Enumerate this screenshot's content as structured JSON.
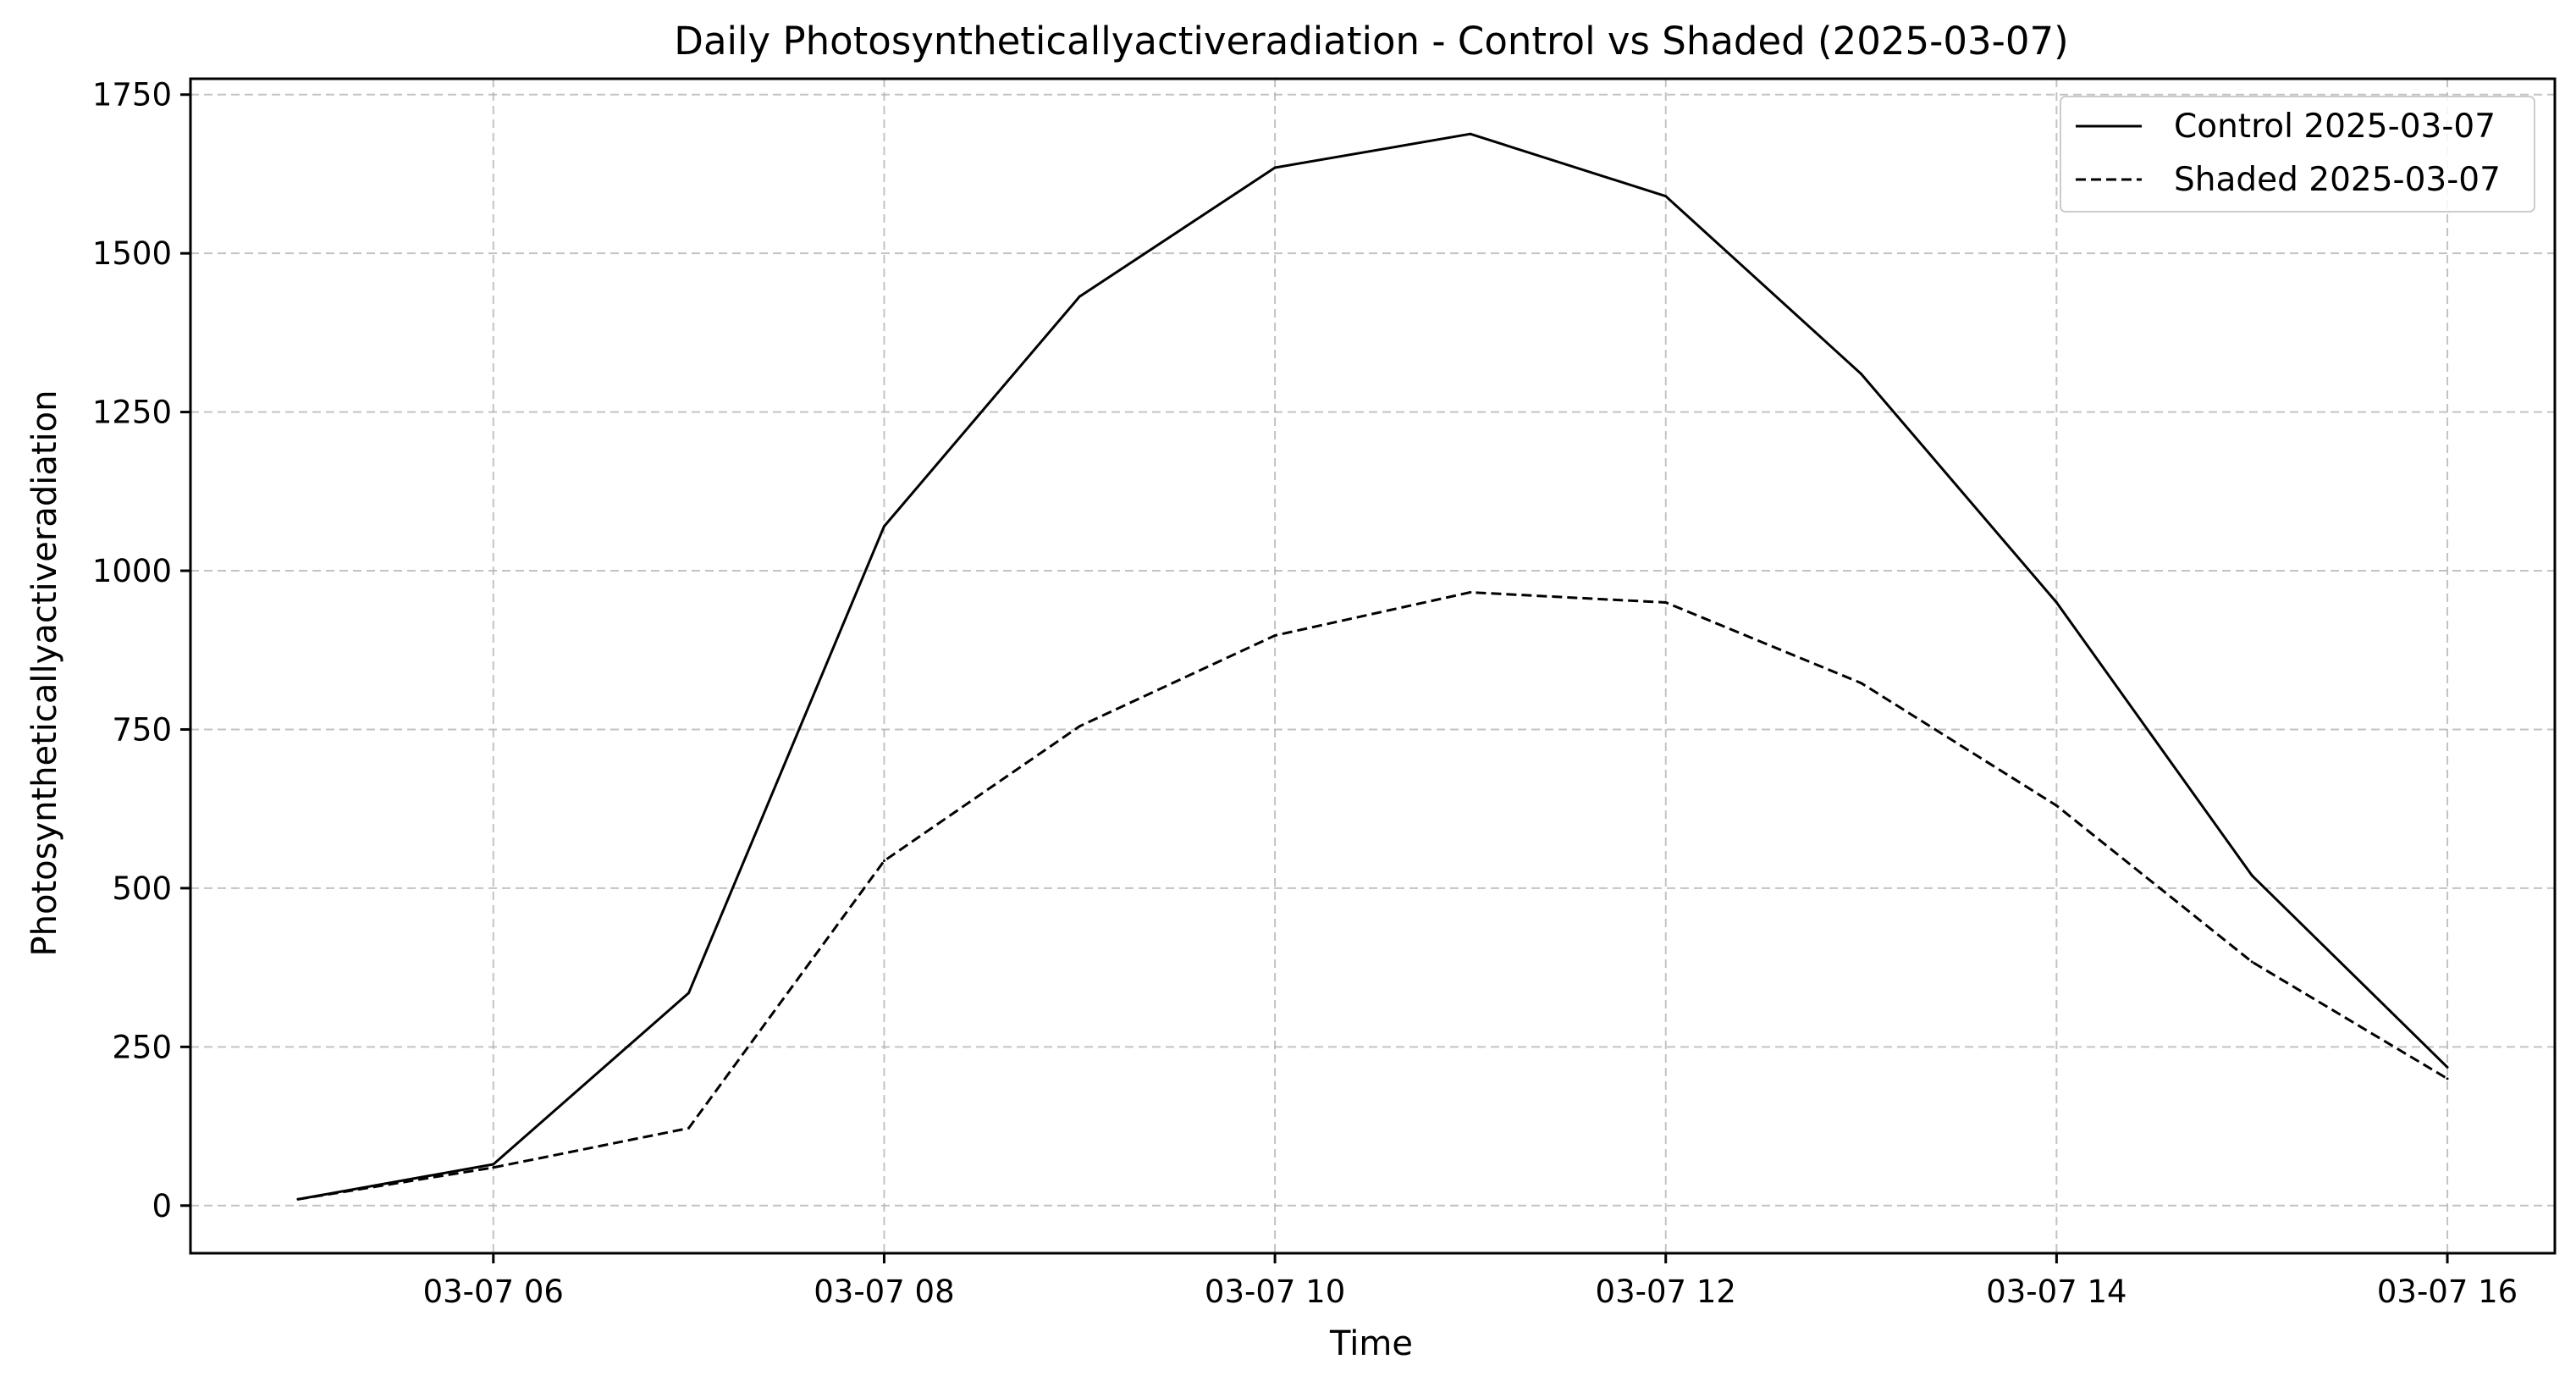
{
  "chart_data": {
    "type": "line",
    "title": "Daily Photosyntheticallyactiveradiation - Control vs Shaded (2025-03-07)",
    "xlabel": "Time",
    "ylabel": "Photosyntheticallyactiveradiation",
    "x": [
      "2025-03-07 05:00",
      "2025-03-07 06:00",
      "2025-03-07 07:00",
      "2025-03-07 08:00",
      "2025-03-07 09:00",
      "2025-03-07 10:00",
      "2025-03-07 11:00",
      "2025-03-07 12:00",
      "2025-03-07 13:00",
      "2025-03-07 14:00",
      "2025-03-07 15:00",
      "2025-03-07 16:00"
    ],
    "xlim": [
      "2025-03-07 04:27",
      "2025-03-07 16:33"
    ],
    "xticks": [
      "2025-03-07 06:00",
      "2025-03-07 08:00",
      "2025-03-07 10:00",
      "2025-03-07 12:00",
      "2025-03-07 14:00",
      "2025-03-07 16:00"
    ],
    "xtick_labels": [
      "03-07 06",
      "03-07 08",
      "03-07 10",
      "03-07 12",
      "03-07 14",
      "03-07 16"
    ],
    "ylim": [
      -75,
      1775
    ],
    "yticks": [
      0,
      250,
      500,
      750,
      1000,
      1250,
      1500,
      1750
    ],
    "ytick_labels": [
      "0",
      "250",
      "500",
      "750",
      "1000",
      "1250",
      "1500",
      "1750"
    ],
    "grid": true,
    "legend_position": "top-right",
    "series": [
      {
        "name": "Control 2025-03-07",
        "style": "solid",
        "color": "#000000",
        "values": [
          10,
          65,
          335,
          1070,
          1432,
          1635,
          1688,
          1590,
          1310,
          950,
          520,
          218
        ]
      },
      {
        "name": "Shaded 2025-03-07",
        "style": "dashed",
        "color": "#000000",
        "values": [
          10,
          60,
          122,
          543,
          755,
          898,
          966,
          950,
          823,
          630,
          384,
          200
        ]
      }
    ]
  }
}
